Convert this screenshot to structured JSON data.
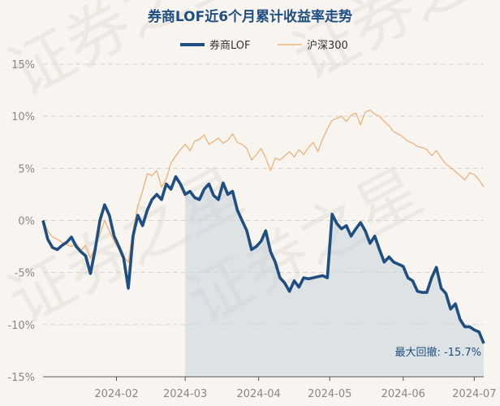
{
  "chart_data": {
    "type": "line",
    "title": "券商LOF近6个月累计收益率走势",
    "legend_position": "top-center",
    "watermark": "证券之星",
    "ylim": [
      -15,
      15
    ],
    "yticks": [
      15,
      10,
      5,
      0,
      -5,
      -10,
      -15
    ],
    "ytick_labels": [
      "15%",
      "10%",
      "5%",
      "0%",
      "-5%",
      "-10%",
      "-15%"
    ],
    "xticks": [
      "2024-02",
      "2024-03",
      "2024-04",
      "2024-05",
      "2024-06",
      "2024-07"
    ],
    "xtick_days": [
      31,
      60,
      91,
      121,
      152,
      182
    ],
    "x_days": [
      0,
      2,
      4,
      6,
      8,
      10,
      12,
      14,
      16,
      18,
      20,
      22,
      24,
      26,
      28,
      30,
      32,
      34,
      36,
      38,
      40,
      42,
      44,
      46,
      48,
      50,
      52,
      54,
      56,
      58,
      60,
      62,
      64,
      66,
      68,
      70,
      72,
      74,
      76,
      78,
      80,
      82,
      84,
      86,
      88,
      90,
      92,
      94,
      96,
      98,
      100,
      102,
      104,
      106,
      108,
      110,
      112,
      114,
      116,
      118,
      120,
      122,
      124,
      126,
      128,
      130,
      132,
      134,
      136,
      138,
      140,
      142,
      144,
      146,
      148,
      150,
      152,
      154,
      156,
      158,
      160,
      162,
      164,
      166,
      168,
      170,
      172,
      174,
      176,
      178,
      180,
      182,
      184,
      186
    ],
    "series": [
      {
        "name": "券商LOF",
        "color": "#1f4e80",
        "values": [
          0,
          -1.8,
          -2.6,
          -2.8,
          -2.4,
          -2.1,
          -1.6,
          -2.5,
          -3.0,
          -3.4,
          -5.1,
          -2.8,
          0,
          1.5,
          0.5,
          -1.5,
          -2.5,
          -3.6,
          -6.5,
          -1.5,
          0.5,
          -0.5,
          1,
          2,
          2.5,
          2,
          3.5,
          3,
          4.2,
          3.5,
          2.5,
          2.8,
          2.2,
          2,
          3,
          3.5,
          2.4,
          2,
          3.6,
          2.5,
          2.8,
          1,
          0,
          -1,
          -2.8,
          -2.5,
          -2,
          -1,
          -3,
          -4,
          -5.5,
          -6,
          -6.8,
          -5.8,
          -6.4,
          -5.5,
          -5.6,
          -5.5,
          -5.4,
          -5.3,
          -5.5,
          0.6,
          -0.3,
          -0.8,
          -0.5,
          -1.5,
          -0.8,
          -0.2,
          -1,
          -2.2,
          -1.5,
          -2.8,
          -4,
          -3.5,
          -4,
          -4.2,
          -4.4,
          -5.5,
          -5.8,
          -6.8,
          -6.9,
          -6.9,
          -5.5,
          -4.5,
          -6.5,
          -7,
          -8.5,
          -8,
          -9.5,
          -10.2,
          -10.2,
          -10.5,
          -10.7,
          -11.8
        ]
      },
      {
        "name": "沪深300",
        "color": "#f0b27a",
        "values": [
          0,
          -1,
          -1.6,
          -1.8,
          -2.1,
          -2.3,
          -2.5,
          -2.2,
          -2.9,
          -2.4,
          -3.6,
          -2.6,
          -1.3,
          0,
          -1,
          -2,
          -2.8,
          -3.5,
          -4,
          -1,
          1.4,
          2.8,
          4.5,
          4.3,
          4.8,
          3.2,
          4,
          5.5,
          6.2,
          6.8,
          7.3,
          6.7,
          7.6,
          7.8,
          8.2,
          7.3,
          7.6,
          7.9,
          7.4,
          7.7,
          8.3,
          7.5,
          7.3,
          6.9,
          5.8,
          6.3,
          6.9,
          6.0,
          4.8,
          6.0,
          5.8,
          6.2,
          6.6,
          6.1,
          6.8,
          6.3,
          7.0,
          7.5,
          6.6,
          7.8,
          8.8,
          9.6,
          9.8,
          10.0,
          9.5,
          10.1,
          10.3,
          9.2,
          10.4,
          10.6,
          10.2,
          10.0,
          9.5,
          9.1,
          8.5,
          8.3,
          8.0,
          7.6,
          7.4,
          7.1,
          7.0,
          6.8,
          6.2,
          6.7,
          6.0,
          5.4,
          5.1,
          4.7,
          4.3,
          3.9,
          4.6,
          4.4,
          3.9,
          3.2
        ]
      }
    ],
    "max_drawdown": {
      "label": "最大回撤: -15.7%",
      "start_day": 60,
      "end_day": 186
    }
  }
}
